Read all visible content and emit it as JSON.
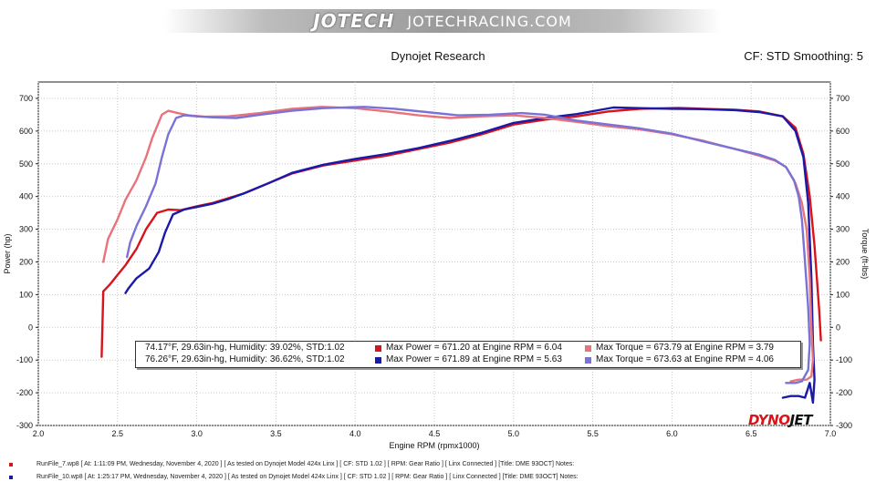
{
  "header": {
    "logo_text": "JOTECH",
    "site_text": "JOTECHRACING.COM",
    "title": "Dynojet Research",
    "cf_info": "CF: STD Smoothing: 5"
  },
  "legend": {
    "rows": [
      {
        "conditions": "74.17°F, 29.63in-hg, Humidity: 39.02%, STD:1.02",
        "power": "Max Power = 671.20 at Engine RPM = 6.04",
        "torque": "Max Torque = 673.79 at Engine RPM = 3.79",
        "power_color": "#d8141b",
        "torque_color": "#e8737a"
      },
      {
        "conditions": "76.26°F, 29.63in-hg, Humidity: 36.62%, STD:1.02",
        "power": "Max Power = 671.89 at Engine RPM = 5.63",
        "torque": "Max Torque = 673.63 at Engine RPM = 4.06",
        "power_color": "#1a1aa8",
        "torque_color": "#7b72d6"
      }
    ]
  },
  "brand": {
    "dyno": "DYNO",
    "jet": "JET"
  },
  "footer": [
    {
      "text": "RunFile_7.wp8  [  At:  1:11:09 PM, Wednesday, November 4, 2020  ]  [  As tested on Dynojet Model 424x Linx  ]  [  CF:  STD 1.02  ]  [  RPM:  Gear Ratio  ]  [  Linx Connected  ]  [Title:  DME 93OCT]    Notes:",
      "color": "#d8141b"
    },
    {
      "text": "RunFile_10.wp8  [  At:  1:25:17 PM, Wednesday, November 4, 2020  ]  [  As tested on Dynojet Model 424x Linx  ]  [  CF:  STD 1.02  ]  [  RPM:  Gear Ratio  ]  [  Linx Connected  ]  [Title:  DME 93OCT]    Notes:",
      "color": "#1a1aa8"
    }
  ],
  "chart_data": {
    "type": "line",
    "xlabel": "Engine RPM (rpmx1000)",
    "ylabel_left": "Power (hp)",
    "ylabel_right": "Torque (ft-lbs)",
    "xlim": [
      2.0,
      7.0
    ],
    "ylim": [
      -300,
      750
    ],
    "x_ticks": [
      2.0,
      2.5,
      3.0,
      3.5,
      4.0,
      4.5,
      5.0,
      5.5,
      6.0,
      6.5,
      7.0
    ],
    "x_tick_labels": [
      "2.0",
      "2.5",
      "3.0",
      "3.5",
      "4.0",
      "4.5",
      "5.0",
      "5.5",
      "6.0",
      "6.5",
      "7.0"
    ],
    "y_ticks": [
      -300,
      -200,
      -100,
      0,
      100,
      200,
      300,
      400,
      500,
      600,
      700
    ],
    "grid": true,
    "series": [
      {
        "role": "power-run7",
        "color": "#d8141b",
        "points": [
          [
            2.4,
            -90
          ],
          [
            2.41,
            110
          ],
          [
            2.45,
            130
          ],
          [
            2.5,
            160
          ],
          [
            2.55,
            190
          ],
          [
            2.62,
            240
          ],
          [
            2.68,
            300
          ],
          [
            2.75,
            350
          ],
          [
            2.82,
            360
          ],
          [
            2.9,
            358
          ],
          [
            3.0,
            370
          ],
          [
            3.1,
            380
          ],
          [
            3.2,
            395
          ],
          [
            3.3,
            410
          ],
          [
            3.45,
            440
          ],
          [
            3.6,
            470
          ],
          [
            3.8,
            495
          ],
          [
            4.0,
            510
          ],
          [
            4.2,
            525
          ],
          [
            4.4,
            545
          ],
          [
            4.6,
            565
          ],
          [
            4.8,
            590
          ],
          [
            5.0,
            620
          ],
          [
            5.2,
            635
          ],
          [
            5.4,
            645
          ],
          [
            5.6,
            660
          ],
          [
            5.8,
            668
          ],
          [
            6.04,
            671
          ],
          [
            6.2,
            668
          ],
          [
            6.4,
            665
          ],
          [
            6.55,
            660
          ],
          [
            6.7,
            645
          ],
          [
            6.78,
            610
          ],
          [
            6.83,
            530
          ],
          [
            6.87,
            400
          ],
          [
            6.9,
            250
          ],
          [
            6.93,
            50
          ],
          [
            6.94,
            -40
          ]
        ]
      },
      {
        "role": "power-run10",
        "color": "#1a1aa8",
        "points": [
          [
            2.55,
            105
          ],
          [
            2.57,
            120
          ],
          [
            2.62,
            150
          ],
          [
            2.7,
            180
          ],
          [
            2.76,
            230
          ],
          [
            2.8,
            290
          ],
          [
            2.85,
            345
          ],
          [
            2.92,
            360
          ],
          [
            3.0,
            368
          ],
          [
            3.1,
            378
          ],
          [
            3.2,
            392
          ],
          [
            3.3,
            410
          ],
          [
            3.45,
            440
          ],
          [
            3.6,
            472
          ],
          [
            3.8,
            497
          ],
          [
            4.0,
            515
          ],
          [
            4.2,
            530
          ],
          [
            4.4,
            548
          ],
          [
            4.6,
            570
          ],
          [
            4.8,
            595
          ],
          [
            5.0,
            625
          ],
          [
            5.2,
            640
          ],
          [
            5.4,
            652
          ],
          [
            5.63,
            672
          ],
          [
            5.8,
            670
          ],
          [
            6.0,
            668
          ],
          [
            6.2,
            667
          ],
          [
            6.4,
            664
          ],
          [
            6.55,
            658
          ],
          [
            6.7,
            645
          ],
          [
            6.78,
            600
          ],
          [
            6.83,
            520
          ],
          [
            6.86,
            380
          ],
          [
            6.88,
            150
          ],
          [
            6.89,
            -50
          ],
          [
            6.9,
            -160
          ],
          [
            6.89,
            -230
          ],
          [
            6.87,
            -170
          ],
          [
            6.84,
            -215
          ],
          [
            6.8,
            -210
          ],
          [
            6.75,
            -210
          ],
          [
            6.7,
            -215
          ]
        ]
      },
      {
        "role": "torque-run7",
        "color": "#e8737a",
        "points": [
          [
            2.41,
            200
          ],
          [
            2.44,
            270
          ],
          [
            2.5,
            330
          ],
          [
            2.55,
            390
          ],
          [
            2.62,
            450
          ],
          [
            2.68,
            520
          ],
          [
            2.72,
            580
          ],
          [
            2.78,
            650
          ],
          [
            2.82,
            662
          ],
          [
            2.88,
            655
          ],
          [
            2.95,
            648
          ],
          [
            3.05,
            644
          ],
          [
            3.2,
            645
          ],
          [
            3.4,
            655
          ],
          [
            3.6,
            668
          ],
          [
            3.79,
            674
          ],
          [
            4.0,
            670
          ],
          [
            4.2,
            660
          ],
          [
            4.4,
            648
          ],
          [
            4.6,
            640
          ],
          [
            4.8,
            645
          ],
          [
            5.0,
            648
          ],
          [
            5.2,
            640
          ],
          [
            5.4,
            628
          ],
          [
            5.6,
            615
          ],
          [
            5.8,
            605
          ],
          [
            6.0,
            590
          ],
          [
            6.2,
            570
          ],
          [
            6.4,
            545
          ],
          [
            6.55,
            525
          ],
          [
            6.65,
            510
          ],
          [
            6.72,
            490
          ],
          [
            6.78,
            440
          ],
          [
            6.82,
            380
          ],
          [
            6.85,
            300
          ],
          [
            6.87,
            150
          ],
          [
            6.88,
            0
          ],
          [
            6.89,
            -100
          ],
          [
            6.88,
            -150
          ],
          [
            6.85,
            -160
          ],
          [
            6.8,
            -160
          ],
          [
            6.75,
            -165
          ]
        ]
      },
      {
        "role": "torque-run10",
        "color": "#7b72d6",
        "points": [
          [
            2.56,
            215
          ],
          [
            2.58,
            260
          ],
          [
            2.62,
            310
          ],
          [
            2.68,
            370
          ],
          [
            2.74,
            440
          ],
          [
            2.78,
            520
          ],
          [
            2.82,
            590
          ],
          [
            2.87,
            640
          ],
          [
            2.92,
            648
          ],
          [
            3.0,
            645
          ],
          [
            3.1,
            642
          ],
          [
            3.25,
            640
          ],
          [
            3.4,
            650
          ],
          [
            3.6,
            662
          ],
          [
            3.8,
            670
          ],
          [
            4.06,
            674
          ],
          [
            4.25,
            668
          ],
          [
            4.45,
            658
          ],
          [
            4.65,
            648
          ],
          [
            4.85,
            650
          ],
          [
            5.05,
            655
          ],
          [
            5.2,
            650
          ],
          [
            5.4,
            632
          ],
          [
            5.6,
            620
          ],
          [
            5.8,
            608
          ],
          [
            6.0,
            592
          ],
          [
            6.2,
            568
          ],
          [
            6.4,
            545
          ],
          [
            6.55,
            528
          ],
          [
            6.65,
            512
          ],
          [
            6.72,
            490
          ],
          [
            6.77,
            450
          ],
          [
            6.8,
            400
          ],
          [
            6.82,
            330
          ],
          [
            6.84,
            200
          ],
          [
            6.86,
            60
          ],
          [
            6.87,
            -50
          ],
          [
            6.86,
            -130
          ],
          [
            6.82,
            -165
          ],
          [
            6.78,
            -170
          ],
          [
            6.72,
            -170
          ]
        ]
      }
    ]
  }
}
